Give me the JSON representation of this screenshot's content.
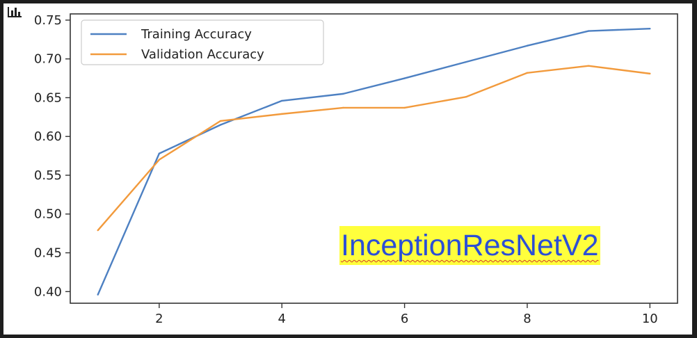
{
  "chart_data": {
    "type": "line",
    "title": "",
    "xlabel": "",
    "ylabel": "",
    "x": [
      1,
      2,
      3,
      4,
      5,
      6,
      7,
      8,
      9,
      10
    ],
    "xlim": [
      0.55,
      10.45
    ],
    "ylim": [
      0.385,
      0.758
    ],
    "xticks": [
      2,
      4,
      6,
      8,
      10
    ],
    "yticks": [
      0.4,
      0.45,
      0.5,
      0.55,
      0.6,
      0.65,
      0.7,
      0.75
    ],
    "ytick_labels": [
      "0.40",
      "0.45",
      "0.50",
      "0.55",
      "0.60",
      "0.65",
      "0.70",
      "0.75"
    ],
    "grid": false,
    "legend_position": "top-left",
    "series": [
      {
        "name": "Training Accuracy",
        "color": "#4d80c2",
        "values": [
          0.396,
          0.578,
          0.615,
          0.646,
          0.655,
          0.675,
          0.696,
          0.717,
          0.736,
          0.739
        ]
      },
      {
        "name": "Validation Accuracy",
        "color": "#f29a3c",
        "values": [
          0.479,
          0.57,
          0.62,
          0.629,
          0.637,
          0.637,
          0.651,
          0.682,
          0.691,
          0.681
        ]
      }
    ],
    "annotation": "InceptionResNetV2"
  },
  "icons": {
    "corner": "bar-chart-icon"
  }
}
